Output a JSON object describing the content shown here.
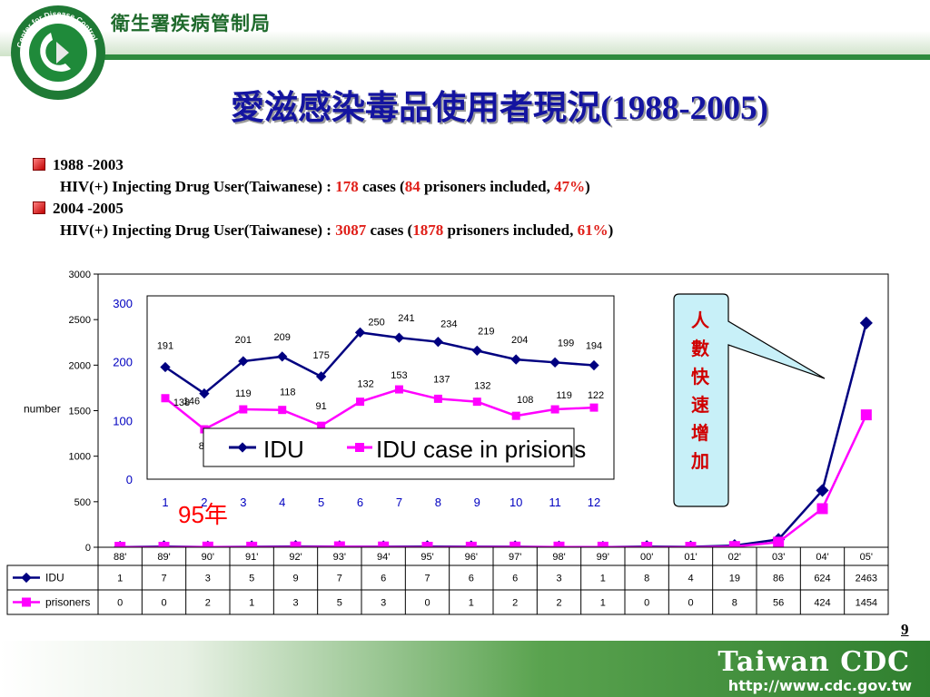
{
  "header": {
    "org_name": "衛生署疾病管制局",
    "logo_ring_text": "Center for Disease Control"
  },
  "title": "愛滋感染毒品使用者現況(1988-2005)",
  "bullets": [
    {
      "period": "1988 -2003",
      "prefix": "HIV(+) Injecting Drug User(Taiwanese) : ",
      "cases": "178",
      "cases_label": " cases (",
      "prisoners": "84",
      "prisoners_label": " prisoners included, ",
      "percent": "47%",
      "suffix": ")"
    },
    {
      "period": "2004 -2005",
      "prefix": "HIV(+) Injecting Drug User(Taiwanese) : ",
      "cases": "3087",
      "cases_label": " cases (",
      "prisoners": "1878",
      "prisoners_label": " prisoners included, ",
      "percent": "61%",
      "suffix": ")"
    }
  ],
  "chart_data": [
    {
      "type": "line",
      "ylabel": "number",
      "ylim": [
        0,
        3000
      ],
      "yticks": [
        "0",
        "500",
        "1000",
        "1500",
        "2000",
        "2500",
        "3000"
      ],
      "categories": [
        "88'",
        "89'",
        "90'",
        "91'",
        "92'",
        "93'",
        "94'",
        "95'",
        "96'",
        "97'",
        "98'",
        "99'",
        "00'",
        "01'",
        "02'",
        "03'",
        "04'",
        "05'"
      ],
      "series": [
        {
          "name": "IDU",
          "color": "#000080",
          "values": [
            1,
            7,
            3,
            5,
            9,
            7,
            6,
            7,
            6,
            6,
            3,
            1,
            8,
            4,
            19,
            86,
            624,
            2463
          ]
        },
        {
          "name": "prisoners",
          "color": "#ff00ff",
          "values": [
            0,
            0,
            2,
            1,
            3,
            5,
            3,
            0,
            1,
            2,
            2,
            1,
            0,
            0,
            8,
            56,
            424,
            1454
          ]
        }
      ],
      "grid": false
    },
    {
      "type": "line",
      "ylim": [
        0,
        300
      ],
      "yticks": [
        "0",
        "100",
        "200",
        "300"
      ],
      "categories": [
        "1",
        "2",
        "3",
        "4",
        "5",
        "6",
        "7",
        "8",
        "9",
        "10",
        "11",
        "12"
      ],
      "series": [
        {
          "name": "IDU",
          "color": "#000080",
          "values": [
            191,
            146,
            201,
            209,
            175,
            250,
            241,
            234,
            219,
            204,
            199,
            194
          ]
        },
        {
          "name": "IDU case in prisions",
          "color": "#ff00ff",
          "values": [
            138,
            85,
            119,
            118,
            91,
            132,
            153,
            137,
            132,
            108,
            119,
            122
          ]
        }
      ],
      "legend": "bottom-right",
      "annotation": "95年"
    }
  ],
  "callout": {
    "text": [
      "人",
      "數",
      "快",
      "速",
      "增",
      "加"
    ],
    "fill": "#c8f0f8",
    "text_color": "#d00000"
  },
  "page_number": "9",
  "footer": {
    "brand": "Taiwan CDC",
    "url": "http://www.cdc.gov.tw"
  }
}
